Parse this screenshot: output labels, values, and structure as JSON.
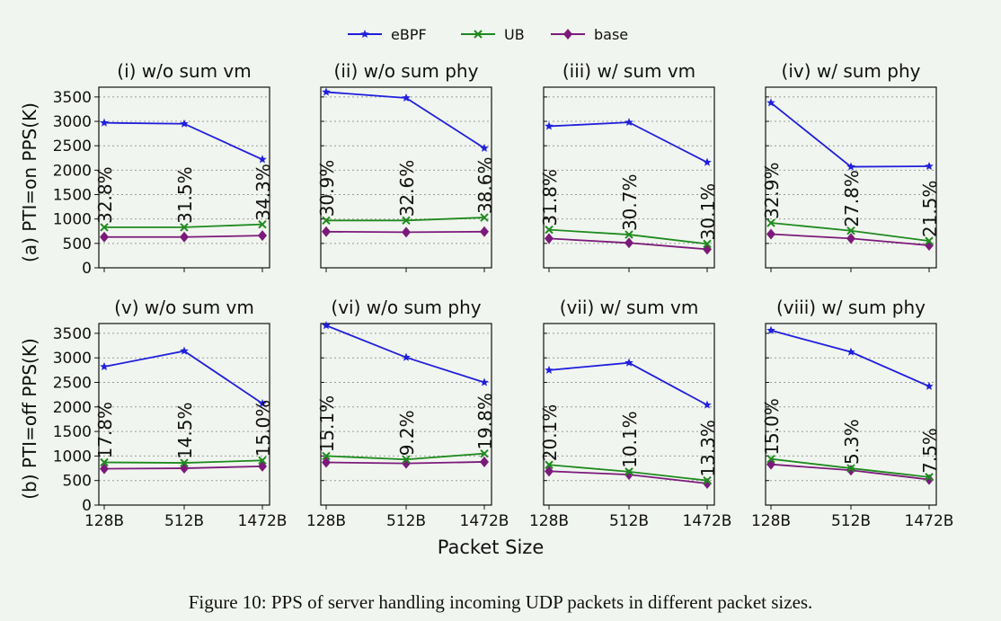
{
  "figure": {
    "caption": "Figure 10: PPS of server handling incoming UDP packets in different packet sizes.",
    "xlabel": "Packet Size"
  },
  "legend": [
    {
      "name": "eBPF",
      "color": "#1f1fdc",
      "marker": "star"
    },
    {
      "name": "UB",
      "color": "#1e8a1e",
      "marker": "x"
    },
    {
      "name": "base",
      "color": "#7b1a7b",
      "marker": "diamond"
    }
  ],
  "rows": [
    {
      "ylabel": "(a) PTI=on PPS(K)"
    },
    {
      "ylabel": "(b) PTI=off PPS(K)"
    }
  ],
  "chart_data": [
    {
      "type": "line",
      "title": "(i) w/o sum vm",
      "categories": [
        "128B",
        "512B",
        "1472B"
      ],
      "ylim": [
        0,
        3700
      ],
      "yticks": [
        0,
        500,
        1000,
        1500,
        2000,
        2500,
        3000,
        3500
      ],
      "series": [
        {
          "name": "eBPF",
          "values": [
            2970,
            2950,
            2220
          ]
        },
        {
          "name": "UB",
          "values": [
            830,
            830,
            890
          ]
        },
        {
          "name": "base",
          "values": [
            630,
            630,
            660
          ]
        }
      ],
      "annotations": [
        "32.8%",
        "31.5%",
        "34.3%"
      ]
    },
    {
      "type": "line",
      "title": "(ii) w/o sum phy",
      "categories": [
        "128B",
        "512B",
        "1472B"
      ],
      "ylim": [
        0,
        3700
      ],
      "yticks": [
        0,
        500,
        1000,
        1500,
        2000,
        2500,
        3000,
        3500
      ],
      "series": [
        {
          "name": "eBPF",
          "values": [
            3600,
            3480,
            2450
          ]
        },
        {
          "name": "UB",
          "values": [
            970,
            970,
            1030
          ]
        },
        {
          "name": "base",
          "values": [
            740,
            730,
            740
          ]
        }
      ],
      "annotations": [
        "30.9%",
        "32.6%",
        "38.6%"
      ]
    },
    {
      "type": "line",
      "title": "(iii) w/ sum vm",
      "categories": [
        "128B",
        "512B",
        "1472B"
      ],
      "ylim": [
        0,
        3700
      ],
      "yticks": [
        0,
        500,
        1000,
        1500,
        2000,
        2500,
        3000,
        3500
      ],
      "series": [
        {
          "name": "eBPF",
          "values": [
            2900,
            2980,
            2160
          ]
        },
        {
          "name": "UB",
          "values": [
            780,
            680,
            490
          ]
        },
        {
          "name": "base",
          "values": [
            600,
            510,
            380
          ]
        }
      ],
      "annotations": [
        "31.8%",
        "30.7%",
        "30.1%"
      ]
    },
    {
      "type": "line",
      "title": "(iv) w/ sum phy",
      "categories": [
        "128B",
        "512B",
        "1472B"
      ],
      "ylim": [
        0,
        3700
      ],
      "yticks": [
        0,
        500,
        1000,
        1500,
        2000,
        2500,
        3000,
        3500
      ],
      "series": [
        {
          "name": "eBPF",
          "values": [
            3380,
            2070,
            2080
          ]
        },
        {
          "name": "UB",
          "values": [
            920,
            760,
            550
          ]
        },
        {
          "name": "base",
          "values": [
            690,
            600,
            460
          ]
        }
      ],
      "annotations": [
        "32.9%",
        "27.8%",
        "21.5%"
      ]
    },
    {
      "type": "line",
      "title": "(v) w/o sum vm",
      "categories": [
        "128B",
        "512B",
        "1472B"
      ],
      "ylim": [
        0,
        3700
      ],
      "yticks": [
        0,
        500,
        1000,
        1500,
        2000,
        2500,
        3000,
        3500
      ],
      "series": [
        {
          "name": "eBPF",
          "values": [
            2820,
            3140,
            2070
          ]
        },
        {
          "name": "UB",
          "values": [
            870,
            860,
            910
          ]
        },
        {
          "name": "base",
          "values": [
            740,
            750,
            790
          ]
        }
      ],
      "annotations": [
        "17.8%",
        "14.5%",
        "15.0%"
      ]
    },
    {
      "type": "line",
      "title": "(vi) w/o sum phy",
      "categories": [
        "128B",
        "512B",
        "1472B"
      ],
      "ylim": [
        0,
        3700
      ],
      "yticks": [
        0,
        500,
        1000,
        1500,
        2000,
        2500,
        3000,
        3500
      ],
      "series": [
        {
          "name": "eBPF",
          "values": [
            3660,
            3010,
            2500
          ]
        },
        {
          "name": "UB",
          "values": [
            1000,
            930,
            1050
          ]
        },
        {
          "name": "base",
          "values": [
            870,
            850,
            880
          ]
        }
      ],
      "annotations": [
        "15.1%",
        "9.2%",
        "19.8%"
      ]
    },
    {
      "type": "line",
      "title": "(vii) w/ sum vm",
      "categories": [
        "128B",
        "512B",
        "1472B"
      ],
      "ylim": [
        0,
        3700
      ],
      "yticks": [
        0,
        500,
        1000,
        1500,
        2000,
        2500,
        3000,
        3500
      ],
      "series": [
        {
          "name": "eBPF",
          "values": [
            2750,
            2900,
            2040
          ]
        },
        {
          "name": "UB",
          "values": [
            820,
            680,
            500
          ]
        },
        {
          "name": "base",
          "values": [
            690,
            620,
            440
          ]
        }
      ],
      "annotations": [
        "20.1%",
        "10.1%",
        "13.3%"
      ]
    },
    {
      "type": "line",
      "title": "(viii) w/ sum phy",
      "categories": [
        "128B",
        "512B",
        "1472B"
      ],
      "ylim": [
        0,
        3700
      ],
      "yticks": [
        0,
        500,
        1000,
        1500,
        2000,
        2500,
        3000,
        3500
      ],
      "series": [
        {
          "name": "eBPF",
          "values": [
            3560,
            3120,
            2420
          ]
        },
        {
          "name": "UB",
          "values": [
            940,
            750,
            570
          ]
        },
        {
          "name": "base",
          "values": [
            830,
            710,
            520
          ]
        }
      ],
      "annotations": [
        "15.0%",
        "5.3%",
        "7.5%"
      ]
    }
  ]
}
